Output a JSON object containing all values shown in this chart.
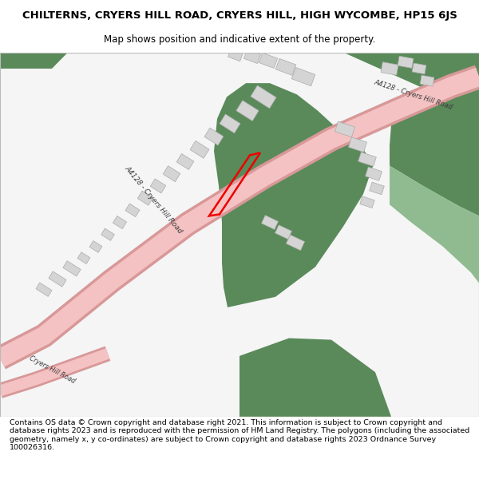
{
  "title_line1": "CHILTERNS, CRYERS HILL ROAD, CRYERS HILL, HIGH WYCOMBE, HP15 6JS",
  "title_line2": "Map shows position and indicative extent of the property.",
  "footer_text": "Contains OS data © Crown copyright and database right 2021. This information is subject to Crown copyright and database rights 2023 and is reproduced with the permission of HM Land Registry. The polygons (including the associated geometry, namely x, y co-ordinates) are subject to Crown copyright and database rights 2023 Ordnance Survey 100026316.",
  "bg_color": "#ffffff",
  "map_bg": "#f5f5f5",
  "road_color": "#f4c2c2",
  "road_border_color": "#d89898",
  "green_dark": "#5a8a5a",
  "green_light": "#90bb90",
  "building_color": "#d4d4d4",
  "building_edge": "#aaaaaa",
  "plot_color": "#ee0000",
  "road_label": "A4128 - Cryers Hill Road",
  "road_label2": "Cryers Hill Road",
  "figsize": [
    6.0,
    6.25
  ],
  "dpi": 100,
  "buildings": [
    [
      330,
      395,
      28,
      16,
      -32
    ],
    [
      310,
      378,
      24,
      15,
      -32
    ],
    [
      288,
      362,
      22,
      14,
      -32
    ],
    [
      268,
      346,
      20,
      13,
      -32
    ],
    [
      250,
      330,
      20,
      13,
      -32
    ],
    [
      232,
      315,
      18,
      12,
      -32
    ],
    [
      215,
      300,
      18,
      12,
      -32
    ],
    [
      198,
      285,
      16,
      11,
      -32
    ],
    [
      182,
      270,
      16,
      11,
      -32
    ],
    [
      166,
      255,
      15,
      10,
      -32
    ],
    [
      150,
      240,
      14,
      10,
      -32
    ],
    [
      135,
      225,
      14,
      9,
      -32
    ],
    [
      120,
      210,
      13,
      9,
      -32
    ],
    [
      105,
      196,
      13,
      9,
      -32
    ],
    [
      90,
      183,
      20,
      10,
      -32
    ],
    [
      72,
      170,
      20,
      10,
      -32
    ],
    [
      55,
      157,
      18,
      9,
      -32
    ],
    [
      380,
      420,
      26,
      15,
      -20
    ],
    [
      358,
      432,
      22,
      14,
      -20
    ],
    [
      336,
      440,
      20,
      13,
      -20
    ],
    [
      316,
      445,
      18,
      12,
      -20
    ],
    [
      295,
      447,
      16,
      11,
      -20
    ],
    [
      432,
      355,
      22,
      13,
      -18
    ],
    [
      448,
      336,
      20,
      13,
      -18
    ],
    [
      460,
      318,
      20,
      12,
      -18
    ],
    [
      468,
      300,
      18,
      12,
      -18
    ],
    [
      472,
      282,
      16,
      11,
      -18
    ],
    [
      460,
      265,
      16,
      10,
      -18
    ],
    [
      370,
      215,
      20,
      12,
      -25
    ],
    [
      355,
      228,
      18,
      11,
      -25
    ],
    [
      338,
      240,
      18,
      11,
      -25
    ],
    [
      488,
      430,
      20,
      13,
      -10
    ],
    [
      508,
      438,
      18,
      12,
      -10
    ],
    [
      525,
      430,
      16,
      11,
      -10
    ],
    [
      535,
      415,
      16,
      11,
      -10
    ]
  ]
}
